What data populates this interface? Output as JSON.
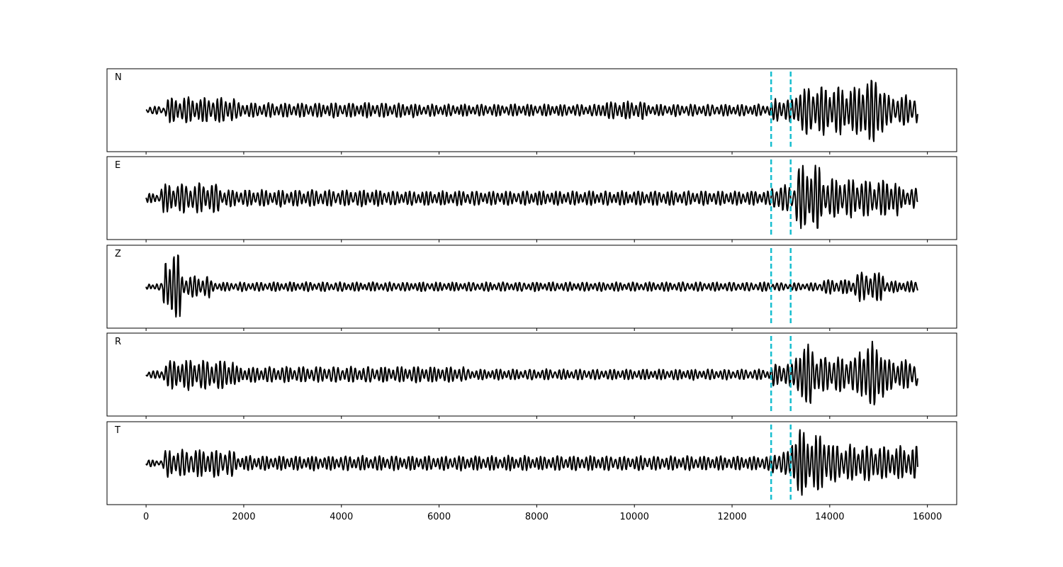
{
  "chart_data": {
    "type": "line",
    "title": "",
    "xlabel": "",
    "ylabel": "",
    "xlim": [
      -800,
      16600
    ],
    "x_ticks": [
      0,
      2000,
      4000,
      6000,
      8000,
      10000,
      12000,
      14000,
      16000
    ],
    "x_tick_labels": [
      "0",
      "2000",
      "4000",
      "6000",
      "8000",
      "10000",
      "12000",
      "14000",
      "16000"
    ],
    "grid": false,
    "line_color": "#000000",
    "marker_color": "#17becf",
    "vertical_markers": [
      12800,
      13200
    ],
    "panels": [
      {
        "channel": "N",
        "x_start": 0,
        "x_end": 15800,
        "ylim": [
          -1.1,
          1.1
        ],
        "segments": [
          {
            "x": [
              0,
              400
            ],
            "amp": 0.12
          },
          {
            "x": [
              400,
              1800
            ],
            "amp": 0.38
          },
          {
            "x": [
              1800,
              5500
            ],
            "amp": 0.22
          },
          {
            "x": [
              5500,
              9300
            ],
            "amp": 0.18
          },
          {
            "x": [
              9300,
              10200
            ],
            "amp": 0.28
          },
          {
            "x": [
              10200,
              12800
            ],
            "amp": 0.18
          },
          {
            "x": [
              12800,
              13300
            ],
            "amp": 0.35
          },
          {
            "x": [
              13300,
              14600
            ],
            "amp": 0.72
          },
          {
            "x": [
              14600,
              15100
            ],
            "amp": 1.0
          },
          {
            "x": [
              15100,
              15800
            ],
            "amp": 0.45
          }
        ]
      },
      {
        "channel": "E",
        "x_start": 0,
        "x_end": 15800,
        "ylim": [
          -1.1,
          1.1
        ],
        "segments": [
          {
            "x": [
              0,
              300
            ],
            "amp": 0.15
          },
          {
            "x": [
              300,
              1500
            ],
            "amp": 0.45
          },
          {
            "x": [
              1500,
              5000
            ],
            "amp": 0.25
          },
          {
            "x": [
              5000,
              12800
            ],
            "amp": 0.22
          },
          {
            "x": [
              12800,
              13300
            ],
            "amp": 0.4
          },
          {
            "x": [
              13300,
              13800
            ],
            "amp": 1.0
          },
          {
            "x": [
              13800,
              14700
            ],
            "amp": 0.6
          },
          {
            "x": [
              14700,
              15400
            ],
            "amp": 0.55
          },
          {
            "x": [
              15400,
              15800
            ],
            "amp": 0.3
          }
        ]
      },
      {
        "channel": "Z",
        "x_start": 0,
        "x_end": 15800,
        "ylim": [
          -1.1,
          1.1
        ],
        "segments": [
          {
            "x": [
              0,
              350
            ],
            "amp": 0.1
          },
          {
            "x": [
              350,
              700
            ],
            "amp": 1.0
          },
          {
            "x": [
              700,
              1300
            ],
            "amp": 0.32
          },
          {
            "x": [
              1300,
              12800
            ],
            "amp": 0.14
          },
          {
            "x": [
              12800,
              13800
            ],
            "amp": 0.12
          },
          {
            "x": [
              13800,
              14500
            ],
            "amp": 0.22
          },
          {
            "x": [
              14500,
              15100
            ],
            "amp": 0.45
          },
          {
            "x": [
              15100,
              15800
            ],
            "amp": 0.18
          }
        ]
      },
      {
        "channel": "R",
        "x_start": 0,
        "x_end": 15800,
        "ylim": [
          -1.1,
          1.1
        ],
        "segments": [
          {
            "x": [
              0,
              350
            ],
            "amp": 0.12
          },
          {
            "x": [
              350,
              1800
            ],
            "amp": 0.45
          },
          {
            "x": [
              1800,
              6500
            ],
            "amp": 0.24
          },
          {
            "x": [
              6500,
              12800
            ],
            "amp": 0.16
          },
          {
            "x": [
              12800,
              13300
            ],
            "amp": 0.35
          },
          {
            "x": [
              13300,
              13700
            ],
            "amp": 0.95
          },
          {
            "x": [
              13700,
              14600
            ],
            "amp": 0.55
          },
          {
            "x": [
              14600,
              15100
            ],
            "amp": 1.0
          },
          {
            "x": [
              15100,
              15800
            ],
            "amp": 0.45
          }
        ]
      },
      {
        "channel": "T",
        "x_start": 0,
        "x_end": 15800,
        "ylim": [
          -1.1,
          1.1
        ],
        "segments": [
          {
            "x": [
              0,
              350
            ],
            "amp": 0.1
          },
          {
            "x": [
              350,
              1800
            ],
            "amp": 0.42
          },
          {
            "x": [
              1800,
              12800
            ],
            "amp": 0.22
          },
          {
            "x": [
              12800,
              13200
            ],
            "amp": 0.35
          },
          {
            "x": [
              13200,
              13500
            ],
            "amp": 1.0
          },
          {
            "x": [
              13500,
              14000
            ],
            "amp": 0.85
          },
          {
            "x": [
              14000,
              15000
            ],
            "amp": 0.55
          },
          {
            "x": [
              15000,
              15800
            ],
            "amp": 0.5
          }
        ]
      }
    ]
  }
}
